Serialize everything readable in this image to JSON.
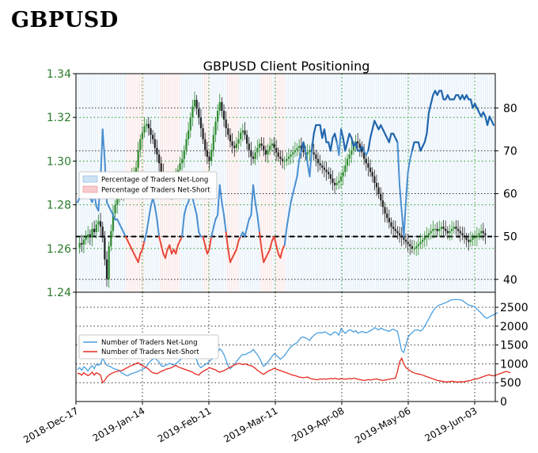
{
  "page": {
    "heading": "GBPUSD"
  },
  "chart_data": {
    "type": "line",
    "title": "GBPUSD Client Positioning",
    "x_tick_labels": [
      "2018-Dec-17",
      "2019-Jan-14",
      "2019-Feb-11",
      "2019-Mar-11",
      "2019-Apr-08",
      "2019-May-06",
      "2019-Jun-03"
    ],
    "price_axis": {
      "ylim": [
        1.24,
        1.34
      ],
      "ticks": [
        "1.24",
        "1.26",
        "1.28",
        "1.30",
        "1.32",
        "1.34"
      ],
      "color": "#2a7a2a"
    },
    "percent_axis": {
      "ylim": [
        37,
        88
      ],
      "ticks": [
        "40",
        "50",
        "60",
        "70",
        "80"
      ],
      "reference_line": 50
    },
    "count_axis": {
      "ylim": [
        0,
        2900
      ],
      "ticks": [
        "0",
        "500",
        "1000",
        "1500",
        "2000",
        "2500"
      ]
    },
    "legend_top": {
      "placement": "left-middle",
      "items": [
        {
          "label": "Percentage of Traders Net-Long",
          "color": "#cfe3f5",
          "edge": "#7fb2de"
        },
        {
          "label": "Percentage of Traders Net-Short",
          "color": "#f8cccc",
          "edge": "#e88a8a"
        }
      ]
    },
    "legend_bottom": {
      "placement": "left-upper",
      "items": [
        {
          "label": "Number of Traders Net-Long",
          "color": "#4a9fe0"
        },
        {
          "label": "Number of Traders Net-Short",
          "color": "#e32a20"
        }
      ]
    },
    "series_colors": {
      "pct_above": "#2166ac",
      "pct_below": "#e8483a",
      "net_long": "#4a9fe0",
      "net_short": "#e32a20",
      "candle_up": "#2e8b2e",
      "candle_down": "#222222"
    },
    "pct_long": [
      58,
      59,
      60,
      60,
      61,
      60,
      59,
      58,
      60,
      57,
      56,
      63,
      75,
      68,
      58,
      57,
      56,
      55,
      54,
      54,
      53,
      52,
      51,
      50,
      49,
      48,
      47,
      46,
      45,
      44,
      46,
      47,
      49,
      51,
      54,
      57,
      59,
      57,
      54,
      50,
      48,
      46,
      45,
      47,
      48,
      46,
      47,
      46,
      48,
      49,
      50,
      55,
      57,
      58,
      60,
      59,
      57,
      55,
      51,
      50,
      50,
      48,
      46,
      47,
      50,
      52,
      54,
      55,
      62,
      58,
      55,
      51,
      47,
      44,
      45,
      46,
      47,
      49,
      50,
      51,
      50,
      52,
      54,
      55,
      62,
      58,
      55,
      51,
      47,
      44,
      45,
      46,
      47,
      49,
      50,
      48,
      46,
      45,
      47,
      48,
      52,
      55,
      58,
      60,
      62,
      64,
      68,
      70,
      72,
      70,
      67,
      64,
      70,
      74,
      76,
      76,
      76,
      73,
      75,
      72,
      72,
      70,
      73,
      74,
      72,
      69,
      75,
      73,
      70,
      72,
      74,
      73,
      71,
      72,
      70,
      70,
      71,
      70,
      69,
      70,
      73,
      75,
      77,
      76,
      75,
      76,
      75,
      74,
      73,
      72,
      74,
      74,
      73,
      72,
      62,
      56,
      50,
      58,
      65,
      68,
      70,
      72,
      72,
      72,
      70,
      71,
      72,
      74,
      79,
      81,
      83,
      84,
      83,
      84,
      84,
      82,
      82,
      83,
      82,
      82,
      82,
      83,
      83,
      82,
      83,
      82,
      83,
      82,
      82,
      80,
      81,
      80,
      79,
      78,
      79,
      78,
      76,
      78,
      77,
      76
    ],
    "net_long": [
      850,
      900,
      830,
      920,
      880,
      810,
      900,
      950,
      870,
      990,
      960,
      1000,
      1150,
      1050,
      960,
      940,
      920,
      880,
      860,
      850,
      820,
      760,
      740,
      700,
      680,
      720,
      740,
      760,
      780,
      800,
      830,
      850,
      880,
      940,
      1010,
      1080,
      1120,
      1150,
      1100,
      1050,
      950,
      930,
      960,
      980,
      1010,
      990,
      970,
      1000,
      1050,
      1100,
      1160,
      1200,
      1240,
      1300,
      1330,
      1280,
      1200,
      1100,
      960,
      900,
      940,
      980,
      1010,
      1050,
      1120,
      1160,
      1250,
      1300,
      1400,
      1350,
      1250,
      1100,
      950,
      870,
      930,
      980,
      1060,
      1130,
      1200,
      1250,
      1240,
      1270,
      1300,
      1320,
      1380,
      1310,
      1250,
      1150,
      1040,
      930,
      980,
      1050,
      1120,
      1200,
      1260,
      1230,
      1180,
      1120,
      1170,
      1220,
      1300,
      1380,
      1450,
      1500,
      1530,
      1560,
      1640,
      1700,
      1710,
      1690,
      1660,
      1620,
      1700,
      1750,
      1800,
      1820,
      1830,
      1820,
      1850,
      1830,
      1790,
      1760,
      1810,
      1850,
      1820,
      1760,
      1930,
      1870,
      1810,
      1860,
      1900,
      1890,
      1840,
      1880,
      1820,
      1830,
      1860,
      1840,
      1820,
      1850,
      1880,
      1910,
      1960,
      1930,
      1900,
      1950,
      1920,
      1900,
      1880,
      1860,
      1900,
      1920,
      1890,
      1860,
      1600,
      1350,
      1300,
      1500,
      1700,
      1780,
      1820,
      1890,
      1900,
      1900,
      1870,
      1910,
      2000,
      2100,
      2200,
      2300,
      2400,
      2480,
      2530,
      2560,
      2580,
      2600,
      2620,
      2650,
      2680,
      2700,
      2700,
      2710,
      2700,
      2700,
      2680,
      2640,
      2600,
      2560,
      2550,
      2530,
      2520,
      2450,
      2400,
      2350,
      2280,
      2230,
      2210,
      2250,
      2280,
      2300,
      2330,
      2360
    ],
    "net_short": [
      750,
      740,
      700,
      760,
      720,
      690,
      720,
      780,
      700,
      760,
      740,
      700,
      500,
      560,
      650,
      700,
      740,
      760,
      790,
      800,
      820,
      820,
      840,
      880,
      900,
      940,
      960,
      980,
      1010,
      1030,
      980,
      960,
      920,
      900,
      860,
      800,
      760,
      750,
      740,
      770,
      800,
      820,
      850,
      870,
      880,
      900,
      930,
      960,
      920,
      900,
      880,
      860,
      840,
      820,
      800,
      780,
      740,
      720,
      700,
      760,
      800,
      830,
      860,
      900,
      880,
      860,
      840,
      800,
      780,
      800,
      820,
      850,
      880,
      910,
      940,
      970,
      990,
      1010,
      1000,
      980,
      1000,
      980,
      960,
      950,
      920,
      880,
      830,
      790,
      750,
      720,
      760,
      800,
      830,
      850,
      880,
      860,
      840,
      820,
      800,
      780,
      760,
      740,
      720,
      700,
      690,
      670,
      650,
      640,
      630,
      640,
      650,
      620,
      600,
      590,
      580,
      580,
      600,
      590,
      600,
      590,
      600,
      610,
      600,
      620,
      600,
      590,
      610,
      600,
      590,
      600,
      610,
      600,
      620,
      610,
      590,
      580,
      570,
      560,
      570,
      580,
      570,
      580,
      590,
      600,
      580,
      570,
      560,
      570,
      580,
      590,
      600,
      610,
      620,
      800,
      1050,
      1150,
      1000,
      900,
      860,
      820,
      780,
      760,
      740,
      730,
      720,
      700,
      680,
      660,
      640,
      620,
      600,
      580,
      560,
      550,
      540,
      530,
      520,
      520,
      530,
      540,
      530,
      520,
      520,
      530,
      520,
      530,
      540,
      550,
      560,
      580,
      590,
      600,
      620,
      640,
      660,
      680,
      700,
      710,
      690,
      680,
      700,
      720,
      740,
      760,
      780,
      800,
      780,
      760
    ],
    "price_close": [
      1.2605,
      1.2625,
      1.2618,
      1.264,
      1.2652,
      1.2665,
      1.265,
      1.269,
      1.2675,
      1.271,
      1.2725,
      1.27,
      1.265,
      1.255,
      1.246,
      1.261,
      1.268,
      1.276,
      1.28,
      1.283,
      1.286,
      1.285,
      1.287,
      1.288,
      1.289,
      1.291,
      1.293,
      1.295,
      1.297,
      1.305,
      1.31,
      1.313,
      1.316,
      1.317,
      1.315,
      1.312,
      1.31,
      1.306,
      1.303,
      1.299,
      1.295,
      1.292,
      1.2895,
      1.287,
      1.285,
      1.287,
      1.29,
      1.293,
      1.296,
      1.299,
      1.301,
      1.305,
      1.31,
      1.314,
      1.32,
      1.325,
      1.328,
      1.324,
      1.32,
      1.315,
      1.31,
      1.305,
      1.302,
      1.3,
      1.305,
      1.312,
      1.318,
      1.323,
      1.327,
      1.323,
      1.319,
      1.315,
      1.312,
      1.309,
      1.307,
      1.306,
      1.308,
      1.31,
      1.313,
      1.314,
      1.312,
      1.308,
      1.305,
      1.302,
      1.301,
      1.304,
      1.306,
      1.308,
      1.307,
      1.305,
      1.303,
      1.305,
      1.307,
      1.308,
      1.306,
      1.304,
      1.302,
      1.301,
      1.3,
      1.3,
      1.301,
      1.302,
      1.303,
      1.304,
      1.305,
      1.306,
      1.307,
      1.305,
      1.304,
      1.303,
      1.304,
      1.305,
      1.304,
      1.303,
      1.301,
      1.299,
      1.298,
      1.297,
      1.296,
      1.295,
      1.294,
      1.292,
      1.29,
      1.289,
      1.29,
      1.291,
      1.293,
      1.295,
      1.298,
      1.301,
      1.303,
      1.305,
      1.307,
      1.309,
      1.308,
      1.306,
      1.304,
      1.301,
      1.299,
      1.297,
      1.295,
      1.293,
      1.29,
      1.288,
      1.285,
      1.282,
      1.279,
      1.276,
      1.274,
      1.272,
      1.27,
      1.269,
      1.268,
      1.267,
      1.266,
      1.265,
      1.264,
      1.263,
      1.262,
      1.261,
      1.26,
      1.26,
      1.261,
      1.262,
      1.263,
      1.264,
      1.265,
      1.266,
      1.267,
      1.268,
      1.269,
      1.269,
      1.268,
      1.269,
      1.27,
      1.269,
      1.268,
      1.267,
      1.268,
      1.269,
      1.27,
      1.269,
      1.268,
      1.267,
      1.266,
      1.265,
      1.264,
      1.263,
      1.264,
      1.265,
      1.265,
      1.266,
      1.267,
      1.268,
      1.267,
      1.266
    ]
  }
}
